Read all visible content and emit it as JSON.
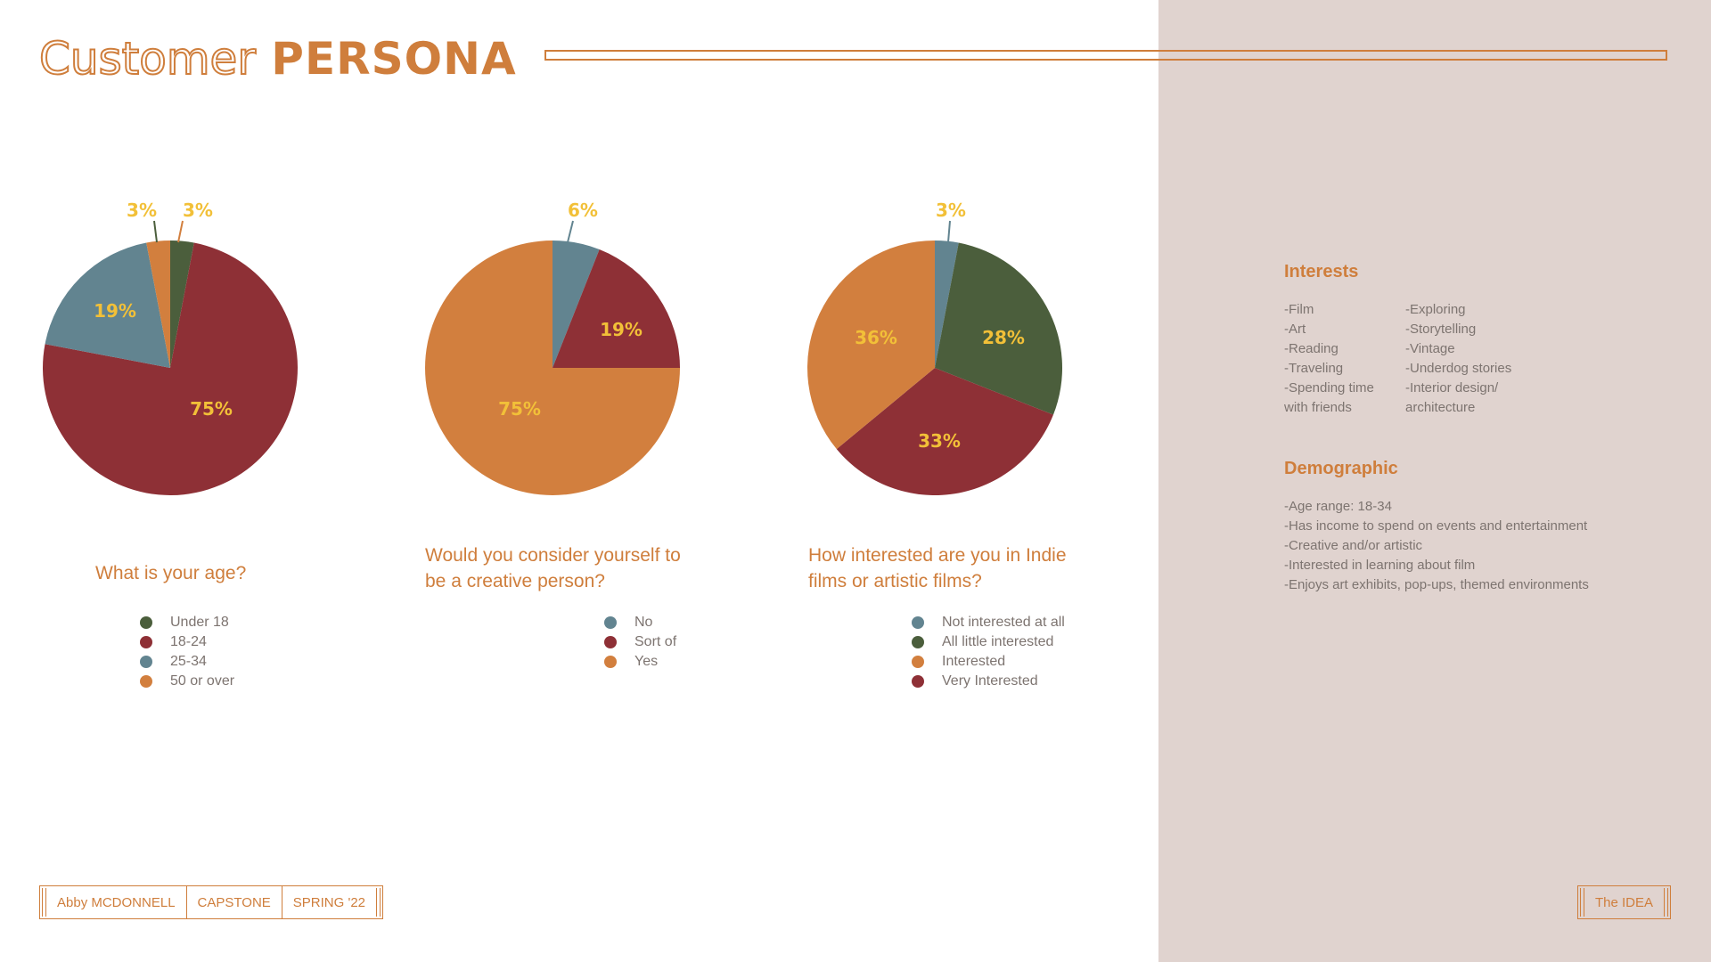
{
  "header": {
    "title_light": "Customer",
    "title_bold": "PERSONA"
  },
  "colors": {
    "accent": "#cf7e3c",
    "panel": "#e0d3cf",
    "label": "#f2c038",
    "green": "#4b5e3c",
    "red": "#8e3036",
    "blue": "#628490",
    "orange": "#d27f3e"
  },
  "chart_data": [
    {
      "type": "pie",
      "title": "What is your age?",
      "slices": [
        {
          "name": "Under 18",
          "value": 3,
          "label": "3%",
          "color": "#4b5e3c"
        },
        {
          "name": "18-24",
          "value": 75,
          "label": "75%",
          "color": "#8e3036"
        },
        {
          "name": "25-34",
          "value": 19,
          "label": "19%",
          "color": "#628490"
        },
        {
          "name": "50 or over",
          "value": 3,
          "label": "3%",
          "color": "#d27f3e"
        }
      ],
      "legend_placement": "bottom"
    },
    {
      "type": "pie",
      "title": "Would you consider yourself to be a creative person?",
      "slices": [
        {
          "name": "No",
          "value": 6,
          "label": "6%",
          "color": "#628490"
        },
        {
          "name": "Sort of",
          "value": 19,
          "label": "19%",
          "color": "#8e3036"
        },
        {
          "name": "Yes",
          "value": 75,
          "label": "75%",
          "color": "#d27f3e"
        }
      ],
      "legend_placement": "bottom"
    },
    {
      "type": "pie",
      "title": "How interested are you in Indie films or artistic films?",
      "slices": [
        {
          "name": "Not interested at all",
          "value": 3,
          "label": "3%",
          "color": "#628490"
        },
        {
          "name": "All little interested",
          "value": 28,
          "label": "28%",
          "color": "#4b5e3c"
        },
        {
          "name": "Very Interested",
          "value": 33,
          "label": "33%",
          "color": "#8e3036"
        },
        {
          "name": "Interested",
          "value": 36,
          "label": "36%",
          "color": "#d27f3e"
        }
      ],
      "legend_order": [
        "Not interested at all",
        "All little interested",
        "Interested",
        "Very Interested"
      ],
      "legend_placement": "bottom"
    }
  ],
  "questions": {
    "q1": "What is your age?",
    "q2_line1": "Would you consider yourself to",
    "q2_line2": "be a creative person?",
    "q3_line1": "How interested are you in Indie",
    "q3_line2": "films or artistic films?"
  },
  "legends": {
    "q1": [
      "Under 18",
      "18-24",
      "25-34",
      "50 or over"
    ],
    "q2": [
      "No",
      "Sort of",
      "Yes"
    ],
    "q3": [
      "Not interested at all",
      "All little interested",
      "Interested",
      "Very Interested"
    ]
  },
  "panel": {
    "interests_heading": "Interests",
    "interests_col1": [
      "-Film",
      "-Art",
      "-Reading",
      "-Traveling",
      "-Spending time",
      "with friends"
    ],
    "interests_col2": [
      "-Exploring",
      "-Storytelling",
      "-Vintage",
      "-Underdog stories",
      "-Interior design/",
      "architecture"
    ],
    "demographic_heading": "Demographic",
    "demographic_items": [
      "-Age range: 18-34",
      "-Has income to spend on events and entertainment",
      "-Creative and/or artistic",
      "-Interested in learning about film",
      "-Enjoys art exhibits, pop-ups, themed environments"
    ]
  },
  "footer": {
    "author": "Abby MCDONNELL",
    "course": "CAPSTONE",
    "term": "SPRING '22",
    "section": "The IDEA"
  }
}
